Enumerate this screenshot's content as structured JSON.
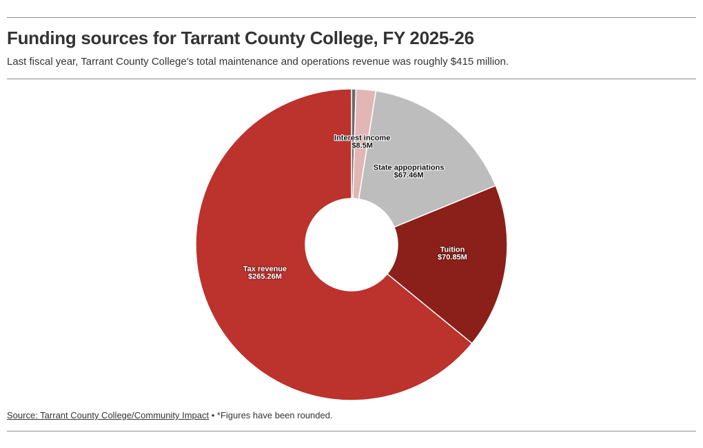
{
  "header": {
    "title": "Funding sources for Tarrant County College, FY 2025-26",
    "subtitle": "Last fiscal year, Tarrant County College's total maintenance and operations revenue was roughly $415 million."
  },
  "footer": {
    "source_text": "Source: Tarrant County College/Community Impact",
    "separator": " • ",
    "note": "*Figures have been rounded."
  },
  "chart_data": {
    "type": "pie",
    "donut": true,
    "start_angle_deg": 0,
    "direction": "clockwise",
    "slices": [
      {
        "name": "",
        "value": 1.9,
        "color": "#6b6b6b",
        "label_name": "",
        "label_value": ""
      },
      {
        "name": "Interest income",
        "value": 8.5,
        "color": "#e2b6b4",
        "label_name": "Interest income",
        "label_value": "$8.5M"
      },
      {
        "name": "State appopriations",
        "value": 67.46,
        "color": "#bdbdbd",
        "label_name": "State appopriations",
        "label_value": "$67.46M"
      },
      {
        "name": "Tuition",
        "value": 70.85,
        "color": "#8a2019",
        "label_name": "Tuition",
        "label_value": "$70.85M"
      },
      {
        "name": "Tax revenue",
        "value": 265.26,
        "color": "#bc322d",
        "label_name": "Tax revenue",
        "label_value": "$265.26M"
      }
    ]
  }
}
